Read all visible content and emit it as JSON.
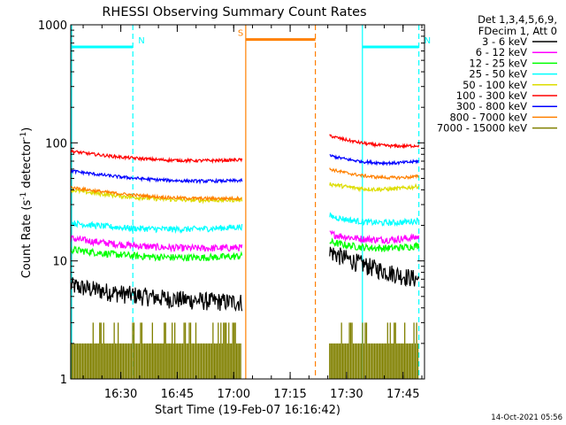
{
  "chart_data": {
    "type": "line",
    "title": "RHESSI Observing Summary Count Rates",
    "xlabel": "Start Time (19-Feb-07 16:16:42)",
    "ylabel": "Count Rate (s",
    "ylabel_sup1": "-1",
    "ylabel_mid": " detector",
    "ylabel_sup2": "-1",
    "ylabel_end": ")",
    "yscale": "log",
    "ylim": [
      1,
      1000
    ],
    "xlim_minutes": [
      0,
      94
    ],
    "x_ticks": [
      {
        "label": "16:30",
        "t": 13.3
      },
      {
        "label": "16:45",
        "t": 28.3
      },
      {
        "label": "17:00",
        "t": 43.3
      },
      {
        "label": "17:15",
        "t": 58.3
      },
      {
        "label": "17:30",
        "t": 73.3
      },
      {
        "label": "17:45",
        "t": 88.3
      }
    ],
    "y_ticks": [
      {
        "label": "1",
        "v": 1
      },
      {
        "label": "10",
        "v": 10
      },
      {
        "label": "100",
        "v": 100
      },
      {
        "label": "1000",
        "v": 1000
      }
    ],
    "legend_header": [
      "Det 1,3,4,5,6,9,",
      "FDecim 1, Att 0"
    ],
    "series": [
      {
        "name": "3 - 6 keV",
        "color": "#000000",
        "pre": [
          6.2,
          4.5
        ],
        "post": [
          12.0,
          7.0
        ],
        "noise": 0.18
      },
      {
        "name": "6 - 12 keV",
        "color": "#ff00ff",
        "pre": [
          15.5,
          13.0
        ],
        "post": [
          17.0,
          16.0
        ],
        "noise": 0.07
      },
      {
        "name": "12 - 25 keV",
        "color": "#00ff00",
        "pre": [
          12.5,
          11.0
        ],
        "post": [
          14.5,
          13.5
        ],
        "noise": 0.07
      },
      {
        "name": "25 - 50 keV",
        "color": "#00ffff",
        "pre": [
          21.0,
          19.5
        ],
        "post": [
          24.0,
          22.0
        ],
        "noise": 0.06
      },
      {
        "name": "50 - 100 keV",
        "color": "#dddd00",
        "pre": [
          40.0,
          33.0
        ],
        "post": [
          45.0,
          43.0
        ],
        "noise": 0.04
      },
      {
        "name": "100 - 300 keV",
        "color": "#ff0000",
        "pre": [
          85.0,
          72.0
        ],
        "post": [
          115.0,
          95.0
        ],
        "noise": 0.03
      },
      {
        "name": "300 - 800 keV",
        "color": "#0000ff",
        "pre": [
          58.0,
          48.0
        ],
        "post": [
          78.0,
          70.0
        ],
        "noise": 0.03
      },
      {
        "name": "800 - 7000 keV",
        "color": "#ff8000",
        "pre": [
          42.0,
          34.0
        ],
        "post": [
          60.0,
          52.0
        ],
        "noise": 0.03
      },
      {
        "name": "7000 - 15000 keV",
        "color": "#808000",
        "pre": [
          2.0,
          2.0
        ],
        "post": [
          2.0,
          2.0
        ],
        "noise": 0.0
      }
    ],
    "segments": {
      "pre_start": 0,
      "pre_end": 45.5,
      "post_start": 68.8,
      "post_end": 92.5
    },
    "annotations": [
      {
        "label": "N",
        "color": "#00ffff",
        "bar": [
          0,
          16.5
        ],
        "bar_level": 650,
        "vlines": [
          16.5
        ],
        "vline_style": "dashed"
      },
      {
        "label": "N",
        "color": "#00ffff",
        "bar": [
          77.5,
          92.5
        ],
        "bar_level": 650,
        "vlines": [
          77.5,
          92.5
        ],
        "vline_style": "mixed"
      },
      {
        "label": "S",
        "color": "#ff8000",
        "bar": [
          46.5,
          65.0
        ],
        "bar_level": 750,
        "vlines": [
          46.5,
          65.0
        ],
        "vline_style": "mixed"
      }
    ],
    "footer_timestamp": "14-Oct-2021 05:56"
  }
}
